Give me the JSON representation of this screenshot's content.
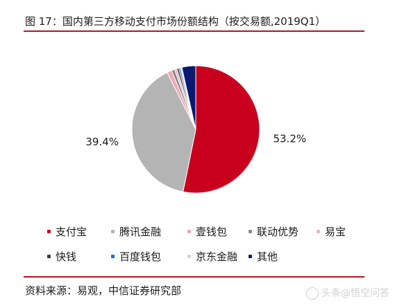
{
  "title": "图 17：国内第三方移动支付市场份额结构（按交易额,2019Q1）",
  "source": "资料来源：易观，中信证券研究部",
  "watermark": "头条@悟空问答",
  "chart_data": {
    "type": "pie",
    "title": "图 17：国内第三方移动支付市场份额结构（按交易额,2019Q1）",
    "series": [
      {
        "name": "支付宝",
        "value": 53.2,
        "color": "#c8001e",
        "label": "53.2%"
      },
      {
        "name": "腾讯金融",
        "value": 39.4,
        "color": "#b4b4b4",
        "label": "39.4%"
      },
      {
        "name": "壹钱包",
        "value": 1.2,
        "color": "#f0a8b4",
        "label": ""
      },
      {
        "name": "联动优势",
        "value": 0.8,
        "color": "#8a8a8a",
        "label": ""
      },
      {
        "name": "易宝",
        "value": 0.6,
        "color": "#e8b8c0",
        "label": ""
      },
      {
        "name": "快钱",
        "value": 0.5,
        "color": "#3a3a3a",
        "label": ""
      },
      {
        "name": "百度钱包",
        "value": 0.4,
        "color": "#1f6fbf",
        "label": ""
      },
      {
        "name": "京东金融",
        "value": 0.4,
        "color": "#d8d0ec",
        "label": ""
      },
      {
        "name": "其他",
        "value": 3.5,
        "color": "#0a1a6e",
        "label": ""
      }
    ],
    "legend_position": "bottom"
  }
}
